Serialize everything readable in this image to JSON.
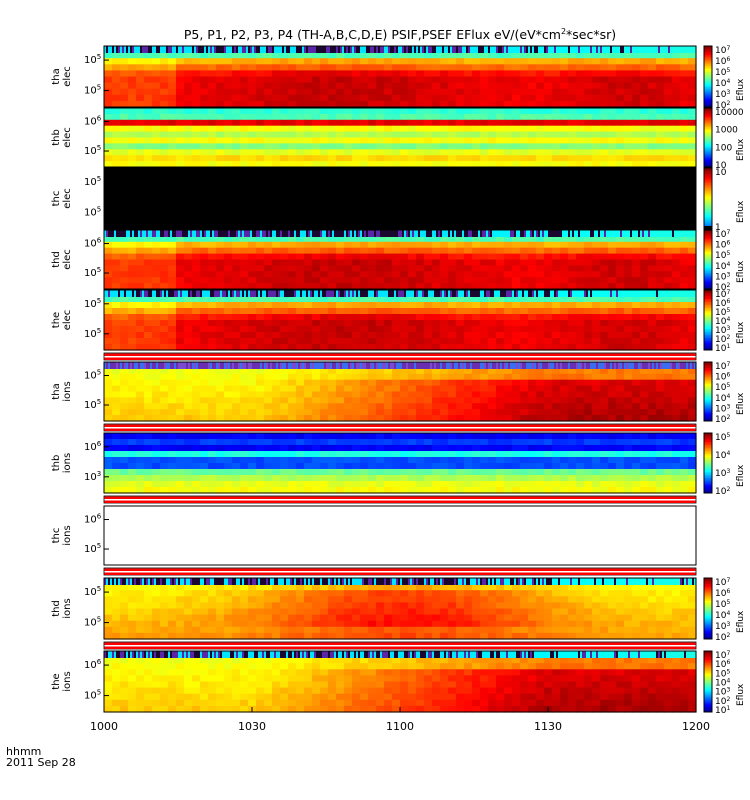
{
  "title": {
    "prefix": "P5, P1, P2, P3, P4 (TH-A,B,C,D,E) PSIF,PSEF EFlux eV/(eV*cm",
    "sup": "2",
    "suffix": "*sec*sr)"
  },
  "footer": {
    "time_label": "hhmm",
    "date_label": "2011 Sep 28"
  },
  "chart_data": {
    "type": "heatmap",
    "x_ticks": [
      "1000",
      "1030",
      "1100",
      "1130",
      "1200"
    ],
    "x_range": [
      "1000",
      "1200"
    ],
    "colorbar_unit": "Eflux",
    "panels": [
      {
        "label": "tha elec",
        "y_tick_labels": [
          "10^5",
          "10^5"
        ],
        "colorbar_ticks": [
          "10^7",
          "10^6",
          "10^5",
          "10^4",
          "10^3",
          "10^2"
        ],
        "style": "elec-strong",
        "top_stripe": "dark",
        "separator_below": false
      },
      {
        "label": "thb elec",
        "y_tick_labels": [
          "10^6",
          "10^5"
        ],
        "colorbar_ticks": [
          "10000",
          "1000",
          "100",
          "10"
        ],
        "style": "green-bands",
        "top_stripe": "none",
        "separator_below": false
      },
      {
        "label": "thc elec",
        "y_tick_labels": [
          "10^5",
          "10^5"
        ],
        "colorbar_ticks": [
          "10",
          "1"
        ],
        "style": "black",
        "top_stripe": "none",
        "separator_below": false
      },
      {
        "label": "thd elec",
        "y_tick_labels": [
          "10^6",
          "10^5"
        ],
        "colorbar_ticks": [
          "10^7",
          "10^6",
          "10^5",
          "10^4",
          "10^3",
          "10^2"
        ],
        "style": "elec-strong",
        "top_stripe": "dark",
        "separator_below": false
      },
      {
        "label": "the elec",
        "y_tick_labels": [
          "10^5",
          "10^5"
        ],
        "colorbar_ticks": [
          "10^7",
          "10^6",
          "10^5",
          "10^4",
          "10^3",
          "10^2",
          "10^1"
        ],
        "style": "elec-strong",
        "top_stripe": "dark",
        "separator_below": true
      },
      {
        "label": "tha ions",
        "y_tick_labels": [
          "10^5",
          "10^5"
        ],
        "colorbar_ticks": [
          "10^7",
          "10^6",
          "10^5",
          "10^4",
          "10^3",
          "10^2"
        ],
        "style": "ions-red",
        "top_stripe": "mixed",
        "separator_below": true
      },
      {
        "label": "thb ions",
        "y_tick_labels": [
          "10^6",
          "10^3"
        ],
        "colorbar_ticks": [
          "10^5",
          "10^4",
          "10^3",
          "10^2"
        ],
        "style": "ions-blue",
        "top_stripe": "none",
        "separator_below": true
      },
      {
        "label": "thc ions",
        "y_tick_labels": [
          "10^6",
          "10^5"
        ],
        "colorbar_ticks": [],
        "style": "empty",
        "top_stripe": "none",
        "separator_below": true
      },
      {
        "label": "thd ions",
        "y_tick_labels": [
          "10^5",
          "10^5"
        ],
        "colorbar_ticks": [
          "10^7",
          "10^6",
          "10^5",
          "10^4",
          "10^3",
          "10^2"
        ],
        "style": "ions-orange",
        "top_stripe": "dark",
        "separator_below": true
      },
      {
        "label": "the ions",
        "y_tick_labels": [
          "10^6",
          "10^5"
        ],
        "colorbar_ticks": [
          "10^7",
          "10^6",
          "10^5",
          "10^4",
          "10^3",
          "10^2",
          "10^1"
        ],
        "style": "ions-red",
        "top_stripe": "dark",
        "separator_below": false
      }
    ]
  }
}
